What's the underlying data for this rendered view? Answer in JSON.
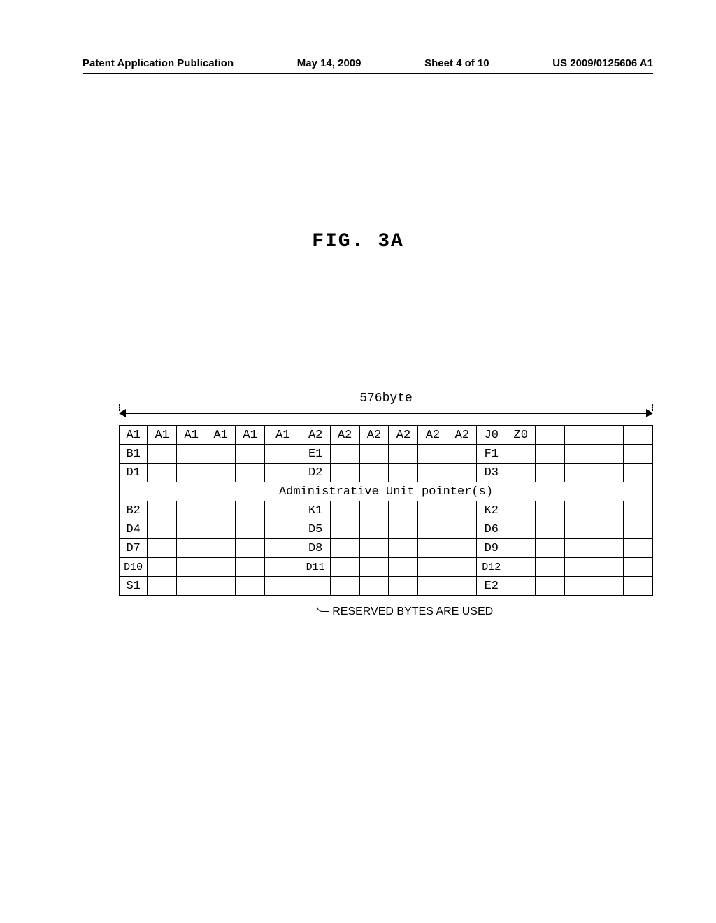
{
  "header": {
    "pub_type": "Patent Application Publication",
    "date": "May 14, 2009",
    "sheet": "Sheet 4 of 10",
    "pub_number": "US 2009/0125606 A1"
  },
  "figure": {
    "title": "FIG. 3A",
    "byte_label": "576byte",
    "admin_label": "Administrative Unit pointer(s)",
    "callout": "RESERVED BYTES ARE USED",
    "columns": 18,
    "col0_width_pct": 5,
    "col5_width_pct": 6.4,
    "col_default_width_pct": 5.2,
    "shaded_cell": {
      "row": 8,
      "col": 6
    },
    "rows": [
      [
        "A1",
        "A1",
        "A1",
        "A1",
        "A1",
        "A1",
        "A2",
        "A2",
        "A2",
        "A2",
        "A2",
        "A2",
        "J0",
        "Z0",
        "",
        "",
        "",
        ""
      ],
      [
        "B1",
        "",
        "",
        "",
        "",
        "",
        "E1",
        "",
        "",
        "",
        "",
        "",
        "F1",
        "",
        "",
        "",
        "",
        ""
      ],
      [
        "D1",
        "",
        "",
        "",
        "",
        "",
        "D2",
        "",
        "",
        "",
        "",
        "",
        "D3",
        "",
        "",
        "",
        "",
        ""
      ],
      [
        "B2",
        "",
        "",
        "",
        "",
        "",
        "K1",
        "",
        "",
        "",
        "",
        "",
        "K2",
        "",
        "",
        "",
        "",
        ""
      ],
      [
        "D4",
        "",
        "",
        "",
        "",
        "",
        "D5",
        "",
        "",
        "",
        "",
        "",
        "D6",
        "",
        "",
        "",
        "",
        ""
      ],
      [
        "D7",
        "",
        "",
        "",
        "",
        "",
        "D8",
        "",
        "",
        "",
        "",
        "",
        "D9",
        "",
        "",
        "",
        "",
        ""
      ],
      [
        "D10",
        "",
        "",
        "",
        "",
        "",
        "D11",
        "",
        "",
        "",
        "",
        "",
        "D12",
        "",
        "",
        "",
        "",
        ""
      ],
      [
        "S1",
        "",
        "",
        "",
        "",
        "",
        "",
        "",
        "",
        "",
        "",
        "",
        "E2",
        "",
        "",
        "",
        "",
        ""
      ]
    ]
  },
  "colors": {
    "border": "#000000",
    "background": "#ffffff",
    "shade_a": "#bbbbbb",
    "shade_b": "#eeeeee"
  }
}
